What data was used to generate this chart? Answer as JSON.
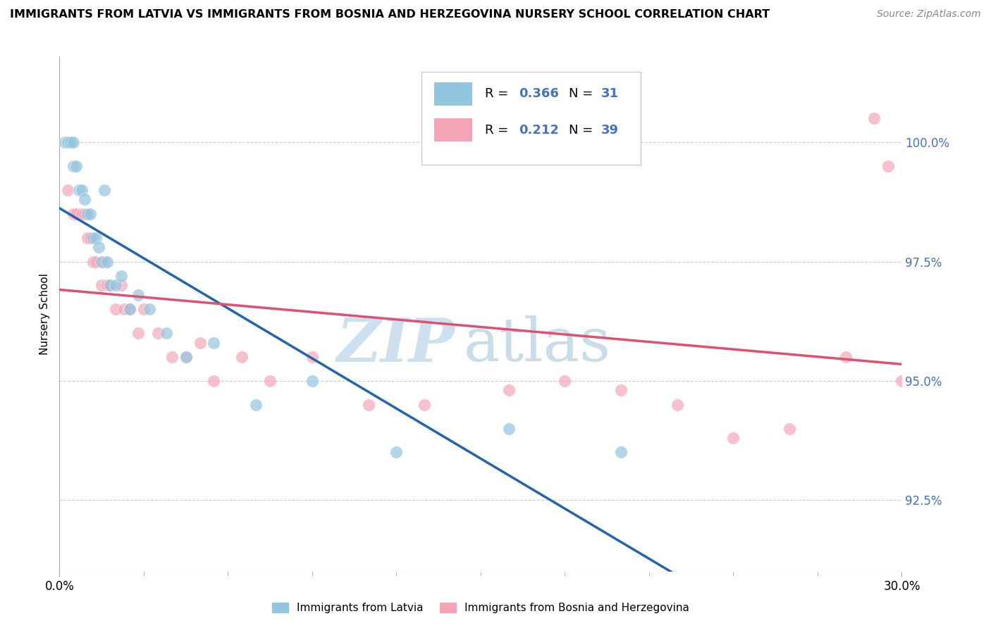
{
  "title": "IMMIGRANTS FROM LATVIA VS IMMIGRANTS FROM BOSNIA AND HERZEGOVINA NURSERY SCHOOL CORRELATION CHART",
  "source": "Source: ZipAtlas.com",
  "ylabel": "Nursery School",
  "y_ticks": [
    92.5,
    95.0,
    97.5,
    100.0
  ],
  "xlim": [
    0.0,
    30.0
  ],
  "ylim": [
    91.0,
    101.8
  ],
  "legend_blue_R": "R = ",
  "legend_blue_R_val": "0.366",
  "legend_blue_N": "N = ",
  "legend_blue_N_val": "31",
  "legend_pink_R": "R = ",
  "legend_pink_R_val": "0.212",
  "legend_pink_N": "N = ",
  "legend_pink_N_val": "39",
  "legend_label_blue": "Immigrants from Latvia",
  "legend_label_pink": "Immigrants from Bosnia and Herzegovina",
  "blue_color": "#92c5de",
  "pink_color": "#f4a6b8",
  "blue_line_color": "#2166ac",
  "pink_line_color": "#e05070",
  "accent_color": "#4472c4",
  "watermark_zip_color": "#cce0f0",
  "watermark_atlas_color": "#c8dde8",
  "grid_color": "#cccccc",
  "blue_x": [
    0.2,
    0.3,
    0.4,
    0.5,
    0.5,
    0.6,
    0.7,
    0.8,
    0.9,
    1.0,
    1.1,
    1.2,
    1.3,
    1.4,
    1.5,
    1.6,
    1.7,
    1.8,
    2.0,
    2.2,
    2.5,
    2.8,
    3.2,
    3.8,
    4.5,
    5.5,
    7.0,
    9.0,
    12.0,
    16.0,
    20.0
  ],
  "blue_y": [
    100.0,
    100.0,
    100.0,
    100.0,
    99.5,
    99.5,
    99.0,
    99.0,
    98.8,
    98.5,
    98.5,
    98.0,
    98.0,
    97.8,
    97.5,
    99.0,
    97.5,
    97.0,
    97.0,
    97.2,
    96.5,
    96.8,
    96.5,
    96.0,
    95.5,
    95.8,
    94.5,
    95.0,
    93.5,
    94.0,
    93.5
  ],
  "pink_x": [
    0.3,
    0.5,
    0.6,
    0.8,
    0.9,
    1.0,
    1.1,
    1.2,
    1.3,
    1.5,
    1.6,
    1.7,
    1.8,
    2.0,
    2.2,
    2.3,
    2.5,
    2.8,
    3.0,
    3.5,
    4.0,
    4.5,
    5.0,
    5.5,
    6.5,
    7.5,
    9.0,
    11.0,
    13.0,
    16.0,
    18.0,
    20.0,
    22.0,
    24.0,
    26.0,
    28.0,
    29.0,
    29.5,
    30.0
  ],
  "pink_y": [
    99.0,
    98.5,
    98.5,
    98.5,
    98.5,
    98.0,
    98.0,
    97.5,
    97.5,
    97.0,
    97.5,
    97.0,
    97.0,
    96.5,
    97.0,
    96.5,
    96.5,
    96.0,
    96.5,
    96.0,
    95.5,
    95.5,
    95.8,
    95.0,
    95.5,
    95.0,
    95.5,
    94.5,
    94.5,
    94.8,
    95.0,
    94.8,
    94.5,
    93.8,
    94.0,
    95.5,
    100.5,
    99.5,
    95.0
  ]
}
